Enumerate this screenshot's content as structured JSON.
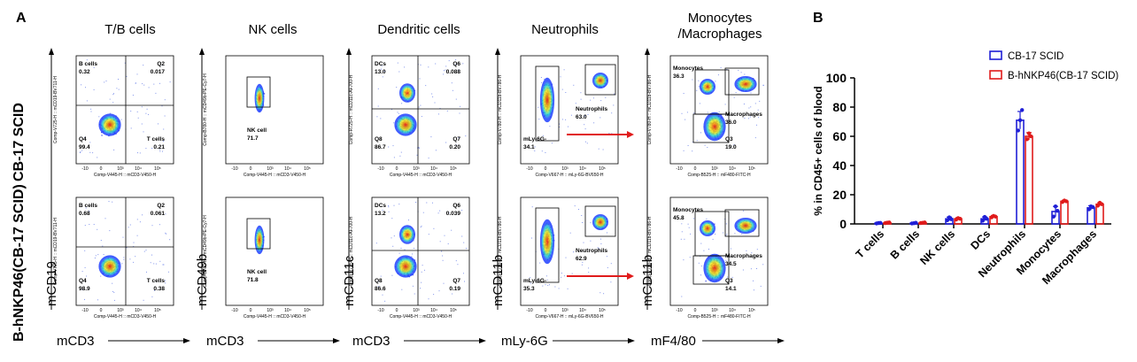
{
  "panel_a_label": "A",
  "panel_b_label": "B",
  "columns": [
    {
      "title": "T/B cells",
      "xlabel": "mCD3",
      "ylabel": "mCD19"
    },
    {
      "title": "NK cells",
      "xlabel": "mCD3",
      "ylabel": "mCD49b"
    },
    {
      "title": "Dendritic cells",
      "xlabel": "mCD3",
      "ylabel": "mCD11c"
    },
    {
      "title": "Neutrophils",
      "xlabel": "mLy-6G",
      "ylabel": "mCD11b"
    },
    {
      "title": "Monocytes\n/Macrophages",
      "xlabel": "mF4/80",
      "ylabel": "mCD11b"
    }
  ],
  "row_labels": {
    "top": "CB-17 SCID",
    "bottom": "B-hNKP46(CB-17 SCID)"
  },
  "flow_plots": [
    {
      "row": 0,
      "col": 0,
      "yaxis": "Comp-V725-H :: mCD19-BV711-H",
      "xaxis": "Comp-V445-H :: mCD3-V450-H",
      "labels": [
        {
          "t": "B cells",
          "v": "0.32",
          "pos": "tl"
        },
        {
          "t": "Q2",
          "v": "0.017",
          "pos": "tr"
        },
        {
          "t": "Q4",
          "v": "99.4",
          "pos": "bl"
        },
        {
          "t": "T cells",
          "v": "0.21",
          "pos": "br"
        }
      ]
    },
    {
      "row": 0,
      "col": 1,
      "yaxis": "Comp-B780-H :: mCD49b-PE-Cy7-H",
      "xaxis": "Comp-V445-H :: mCD3-V450-H",
      "labels": [
        {
          "t": "NK cell",
          "v": "71.7",
          "pos": "gate"
        }
      ]
    },
    {
      "row": 0,
      "col": 2,
      "yaxis": "Comp-R725-H :: mCD11c-AF700-H",
      "xaxis": "Comp-V445-H :: mCD3-V450-H",
      "labels": [
        {
          "t": "DCs",
          "v": "13.0",
          "pos": "tl"
        },
        {
          "t": "Q6",
          "v": "0.088",
          "pos": "tr"
        },
        {
          "t": "Q8",
          "v": "86.7",
          "pos": "bl"
        },
        {
          "t": "Q7",
          "v": "0.20",
          "pos": "br"
        }
      ]
    },
    {
      "row": 0,
      "col": 3,
      "yaxis": "Comp-V780-H :: mCD11b-BV786-H",
      "xaxis": "Comp-V667-H :: mLy-6G-BV650-H",
      "labels": [
        {
          "t": "Neutrophils",
          "v": "63.0",
          "pos": "neu"
        },
        {
          "t": "mLy-6G-",
          "v": "34.1",
          "pos": "neg"
        }
      ]
    },
    {
      "row": 0,
      "col": 4,
      "yaxis": "Comp-V780-H :: mCD11b-BV786-H",
      "xaxis": "Comp-B525-H :: mF480-FITC-H",
      "labels": [
        {
          "t": "Monocytes",
          "v": "36.3",
          "pos": "mono"
        },
        {
          "t": "Macrophages",
          "v": "36.0",
          "pos": "mac"
        },
        {
          "t": "Q3",
          "v": "19.0",
          "pos": "q3"
        }
      ]
    },
    {
      "row": 1,
      "col": 0,
      "yaxis": "Comp-V725-H :: mCD19-BV711-H",
      "xaxis": "Comp-V445-H :: mCD3-V450-H",
      "labels": [
        {
          "t": "B cells",
          "v": "0.68",
          "pos": "tl"
        },
        {
          "t": "Q2",
          "v": "0.061",
          "pos": "tr"
        },
        {
          "t": "Q4",
          "v": "98.9",
          "pos": "bl"
        },
        {
          "t": "T cells",
          "v": "0.38",
          "pos": "br"
        }
      ]
    },
    {
      "row": 1,
      "col": 1,
      "yaxis": "Comp-B780-H :: mCD49b-PE-Cy7-H",
      "xaxis": "Comp-V445-H :: mCD3-V450-H",
      "labels": [
        {
          "t": "NK cell",
          "v": "71.8",
          "pos": "gate"
        }
      ]
    },
    {
      "row": 1,
      "col": 2,
      "yaxis": "Comp-R725-H :: mCD11c-AF700-H",
      "xaxis": "Comp-V445-H :: mCD3-V450-H",
      "labels": [
        {
          "t": "DCs",
          "v": "13.2",
          "pos": "tl"
        },
        {
          "t": "Q6",
          "v": "0.039",
          "pos": "tr"
        },
        {
          "t": "Q8",
          "v": "86.6",
          "pos": "bl"
        },
        {
          "t": "Q7",
          "v": "0.19",
          "pos": "br"
        }
      ]
    },
    {
      "row": 1,
      "col": 3,
      "yaxis": "Comp-V780-H :: mCD11b-BV786-H",
      "xaxis": "Comp-V667-H :: mLy-6G-BV650-H",
      "labels": [
        {
          "t": "Neutrophils",
          "v": "62.9",
          "pos": "neu"
        },
        {
          "t": "mLy-6G-",
          "v": "35.3",
          "pos": "neg"
        }
      ]
    },
    {
      "row": 1,
      "col": 4,
      "yaxis": "Comp-V780-H :: mCD11b-BV786-H",
      "xaxis": "Comp-B525-H :: mF480-FITC-H",
      "labels": [
        {
          "t": "Monocytes",
          "v": "45.8",
          "pos": "mono"
        },
        {
          "t": "Macrophages",
          "v": "34.5",
          "pos": "mac"
        },
        {
          "t": "Q3",
          "v": "14.1",
          "pos": "q3"
        }
      ]
    }
  ],
  "chart_data": {
    "type": "bar",
    "title": "",
    "xlabel": "",
    "ylabel": "% in CD45+ cells of blood",
    "ylim": [
      0,
      100
    ],
    "yticks": [
      0,
      20,
      40,
      60,
      80,
      100
    ],
    "categories": [
      "T cells",
      "B cells",
      "NK cells",
      "DCs",
      "Neutrophils",
      "Monocytes",
      "Macrophages"
    ],
    "legend_position": "top-right",
    "series": [
      {
        "name": "CB-17 SCID",
        "color": "#1f1fd6",
        "values": [
          0.5,
          0.5,
          3.5,
          3.5,
          71,
          8.5,
          11
        ],
        "errors": [
          0.3,
          0.3,
          1.2,
          1.3,
          6,
          3.5,
          1.5
        ],
        "points": [
          [
            0.3,
            0.6,
            0.7
          ],
          [
            0.3,
            0.5,
            0.8
          ],
          [
            2.5,
            4.5,
            3.2
          ],
          [
            2.2,
            4.8,
            3.5
          ],
          [
            64,
            71,
            78
          ],
          [
            5,
            12,
            9
          ],
          [
            10,
            12,
            11.5
          ]
        ]
      },
      {
        "name": "B-hNKP46(CB-17 SCID)",
        "color": "#e01b1b",
        "values": [
          0.8,
          0.8,
          3.5,
          5.0,
          60,
          15.5,
          13.5
        ],
        "errors": [
          0.3,
          0.3,
          0.8,
          0.8,
          2.5,
          0.7,
          1.0
        ],
        "points": [
          [
            0.6,
            0.9,
            1.0
          ],
          [
            0.6,
            0.8,
            1.0
          ],
          [
            3,
            4,
            3.5
          ],
          [
            4.5,
            5.5,
            5.0
          ],
          [
            58,
            62,
            60
          ],
          [
            15,
            16,
            15.5
          ],
          [
            12.5,
            14.5,
            13.5
          ]
        ]
      }
    ]
  }
}
